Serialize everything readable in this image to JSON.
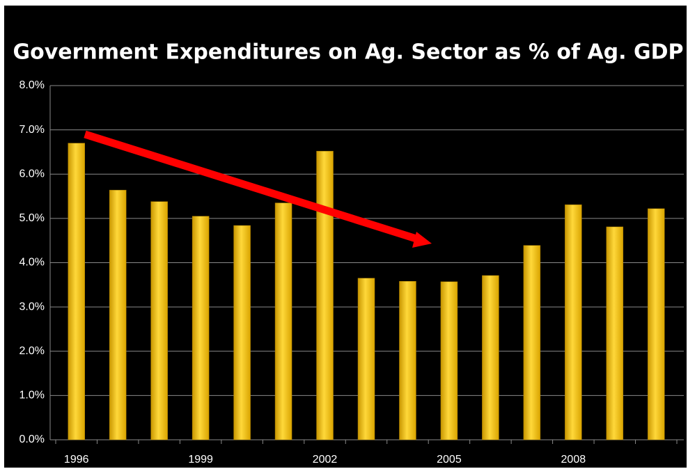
{
  "chart_data": {
    "type": "bar",
    "title": "Government Expenditures on Ag. Sector as % of Ag. GDP",
    "categories": [
      "1996",
      null,
      null,
      "1999",
      null,
      null,
      "2002",
      null,
      null,
      "2005",
      null,
      null,
      "2008",
      null,
      null
    ],
    "values": [
      6.7,
      5.64,
      5.38,
      5.05,
      4.84,
      5.35,
      6.52,
      3.65,
      3.58,
      3.57,
      3.71,
      4.39,
      5.31,
      4.81,
      5.22
    ],
    "color": "#f5c400",
    "ylim": [
      0,
      8
    ],
    "yticks": [
      {
        "value": 0,
        "label": "0.0%"
      },
      {
        "value": 1,
        "label": "1.0%"
      },
      {
        "value": 2,
        "label": "2.0%"
      },
      {
        "value": 3,
        "label": "3.0%"
      },
      {
        "value": 4,
        "label": "4.0%"
      },
      {
        "value": 5,
        "label": "5.0%"
      },
      {
        "value": 6,
        "label": "6.0%"
      },
      {
        "value": 7,
        "label": "7.0%"
      },
      {
        "value": 8,
        "label": "8.0%"
      }
    ],
    "grid": true
  }
}
